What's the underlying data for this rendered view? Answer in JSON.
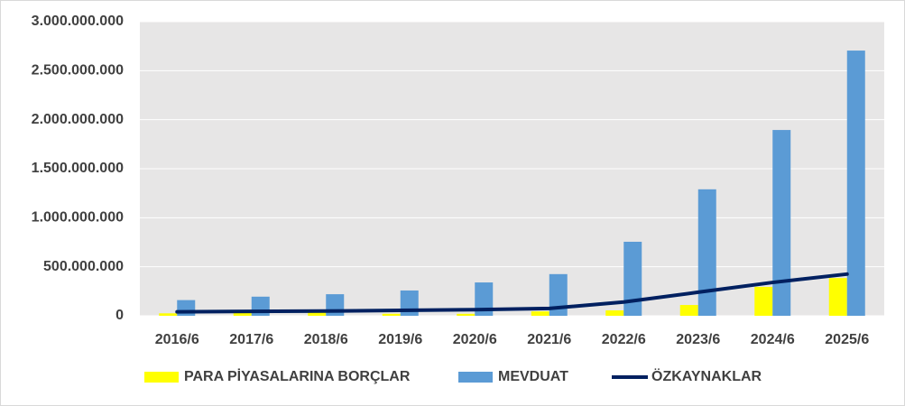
{
  "chart_data": {
    "type": "bar-line",
    "categories": [
      "2016/6",
      "2017/6",
      "2018/6",
      "2019/6",
      "2020/6",
      "2021/6",
      "2022/6",
      "2023/6",
      "2024/6",
      "2025/6"
    ],
    "series": [
      {
        "name": "PARA PİYASALARINA BORÇLAR",
        "type": "bar",
        "color": "#ffff00",
        "values": [
          25000000,
          40000000,
          35000000,
          20000000,
          20000000,
          45000000,
          55000000,
          110000000,
          295000000,
          385000000
        ]
      },
      {
        "name": "MEVDUAT",
        "type": "bar",
        "color": "#5b9bd5",
        "values": [
          160000000,
          195000000,
          220000000,
          258000000,
          340000000,
          425000000,
          755000000,
          1290000000,
          1895000000,
          2705000000
        ]
      },
      {
        "name": "ÖZKAYNAKLAR",
        "type": "line",
        "color": "#002060",
        "values": [
          40000000,
          45000000,
          48000000,
          55000000,
          62000000,
          75000000,
          140000000,
          240000000,
          340000000,
          425000000
        ]
      }
    ],
    "ylim": [
      0,
      3000000000
    ],
    "yticks": [
      {
        "value": 0,
        "label": "0"
      },
      {
        "value": 500000000,
        "label": "500.000.000"
      },
      {
        "value": 1000000000,
        "label": "1.000.000.000"
      },
      {
        "value": 1500000000,
        "label": "1.500.000.000"
      },
      {
        "value": 2000000000,
        "label": "2.000.000.000"
      },
      {
        "value": 2500000000,
        "label": "2.500.000.000"
      },
      {
        "value": 3000000000,
        "label": "3.000.000.000"
      }
    ],
    "grid": true,
    "legend": "bottom"
  }
}
